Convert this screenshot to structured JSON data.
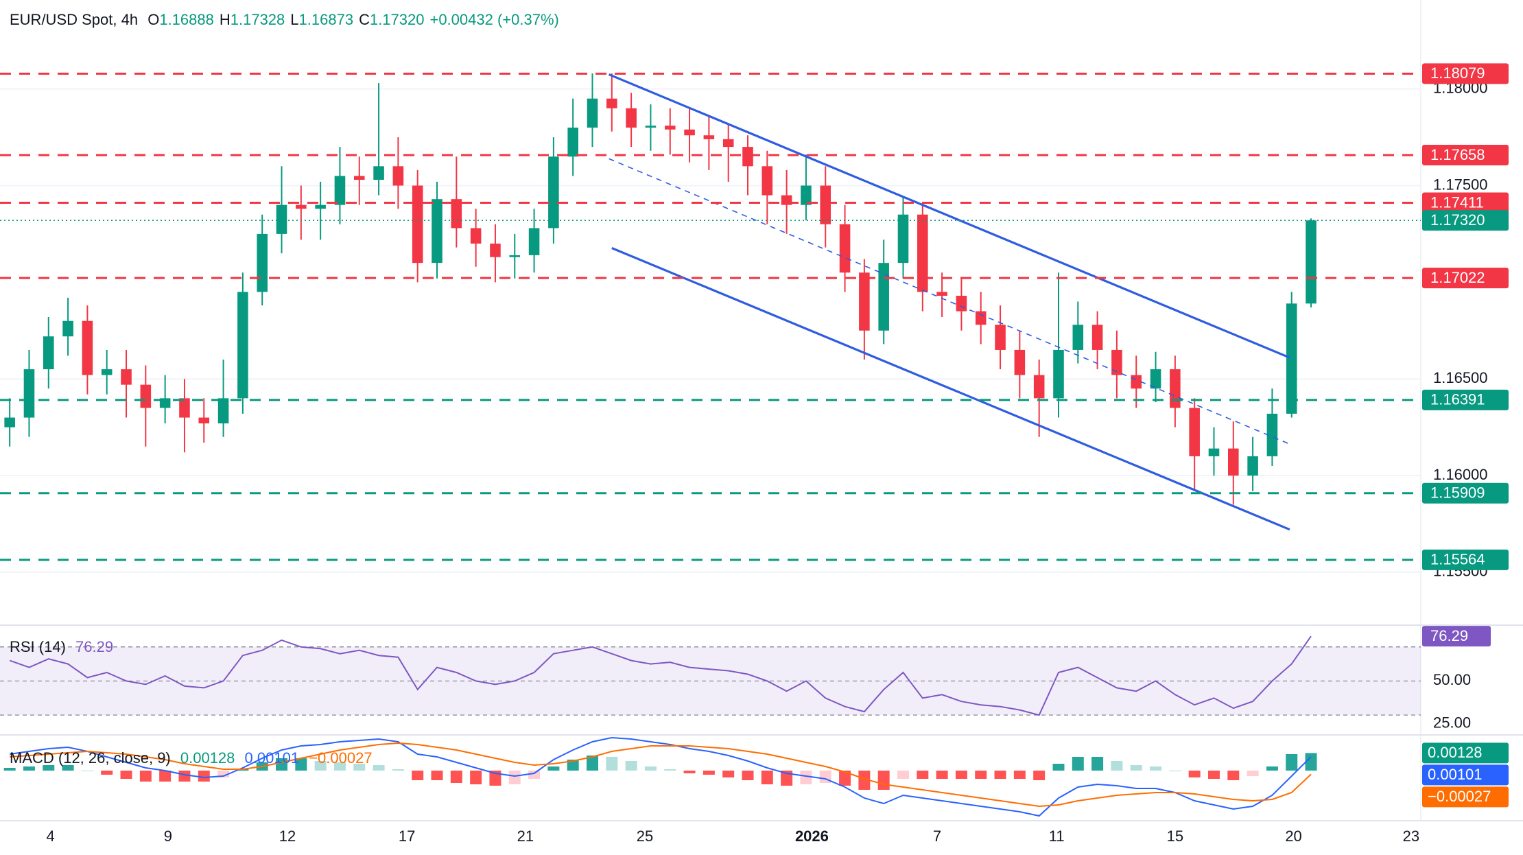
{
  "chart_data": [
    {
      "type": "candlestick",
      "title": "EUR/USD Spot, 4h",
      "legend": [
        {
          "key": "O",
          "value": "1.16888"
        },
        {
          "key": "H",
          "value": "1.17328"
        },
        {
          "key": "L",
          "value": "1.16873"
        },
        {
          "key": "C",
          "value": "1.17320"
        }
      ],
      "change": "+0.00432 (+0.37%)",
      "open": [
        1.1625,
        1.163,
        1.1655,
        1.1672,
        1.168,
        1.1652,
        1.1655,
        1.1647,
        1.1635,
        1.164,
        1.163,
        1.1627,
        1.164,
        1.1695,
        1.1725,
        1.174,
        1.1738,
        1.174,
        1.1755,
        1.1753,
        1.176,
        1.175,
        1.171,
        1.1743,
        1.1728,
        1.172,
        1.1713,
        1.1714,
        1.1728,
        1.1765,
        1.178,
        1.1795,
        1.179,
        1.178,
        1.1781,
        1.1779,
        1.1776,
        1.1774,
        1.177,
        1.176,
        1.1745,
        1.174,
        1.175,
        1.173,
        1.1705,
        1.1675,
        1.171,
        1.1735,
        1.1695,
        1.1693,
        1.1685,
        1.1678,
        1.1665,
        1.1652,
        1.164,
        1.1665,
        1.1678,
        1.1665,
        1.1652,
        1.1645,
        1.1655,
        1.1635,
        1.161,
        1.1614,
        1.16,
        1.161,
        1.1632,
        1.1689
      ],
      "high": [
        1.164,
        1.1665,
        1.1682,
        1.1692,
        1.1688,
        1.1665,
        1.1665,
        1.1657,
        1.1652,
        1.165,
        1.164,
        1.166,
        1.1705,
        1.1735,
        1.176,
        1.175,
        1.1752,
        1.177,
        1.1765,
        1.1803,
        1.1775,
        1.1758,
        1.1752,
        1.1765,
        1.1738,
        1.173,
        1.1725,
        1.1738,
        1.1775,
        1.1795,
        1.1808,
        1.1808,
        1.1798,
        1.1792,
        1.179,
        1.179,
        1.1786,
        1.1782,
        1.1776,
        1.1768,
        1.1758,
        1.1766,
        1.176,
        1.174,
        1.1712,
        1.1722,
        1.1744,
        1.174,
        1.1705,
        1.1702,
        1.1695,
        1.1688,
        1.1675,
        1.166,
        1.1705,
        1.169,
        1.1685,
        1.1675,
        1.1662,
        1.1664,
        1.1662,
        1.164,
        1.1625,
        1.1628,
        1.162,
        1.1645,
        1.1695,
        1.1733
      ],
      "low": [
        1.1615,
        1.162,
        1.1645,
        1.1662,
        1.1642,
        1.1642,
        1.163,
        1.1615,
        1.1627,
        1.1612,
        1.1617,
        1.162,
        1.1632,
        1.1688,
        1.1715,
        1.1722,
        1.1722,
        1.173,
        1.174,
        1.1745,
        1.1738,
        1.17,
        1.1702,
        1.1718,
        1.1708,
        1.17,
        1.1702,
        1.1705,
        1.172,
        1.1755,
        1.177,
        1.1778,
        1.177,
        1.1768,
        1.1766,
        1.1762,
        1.1758,
        1.1752,
        1.1745,
        1.173,
        1.1725,
        1.1732,
        1.1718,
        1.1695,
        1.166,
        1.1668,
        1.1702,
        1.1685,
        1.1682,
        1.1675,
        1.1668,
        1.1655,
        1.164,
        1.162,
        1.163,
        1.1658,
        1.1655,
        1.164,
        1.1635,
        1.1638,
        1.1625,
        1.1592,
        1.16,
        1.1585,
        1.1592,
        1.1605,
        1.163,
        1.1687
      ],
      "close": [
        1.163,
        1.1655,
        1.1672,
        1.168,
        1.1652,
        1.1655,
        1.1647,
        1.1635,
        1.164,
        1.163,
        1.1627,
        1.164,
        1.1695,
        1.1725,
        1.174,
        1.1738,
        1.174,
        1.1755,
        1.1753,
        1.176,
        1.175,
        1.171,
        1.1743,
        1.1728,
        1.172,
        1.1713,
        1.1714,
        1.1728,
        1.1765,
        1.178,
        1.1795,
        1.179,
        1.178,
        1.1781,
        1.1779,
        1.1776,
        1.1774,
        1.177,
        1.176,
        1.1745,
        1.174,
        1.175,
        1.173,
        1.1705,
        1.1675,
        1.171,
        1.1735,
        1.1695,
        1.1693,
        1.1685,
        1.1678,
        1.1665,
        1.1652,
        1.164,
        1.1665,
        1.1678,
        1.1665,
        1.1652,
        1.1645,
        1.1655,
        1.1635,
        1.161,
        1.1614,
        1.16,
        1.161,
        1.1632,
        1.1689,
        1.1732
      ],
      "up_color": "#089981",
      "down_color": "#f23645",
      "xlim": [
        -0.5,
        72.65
      ],
      "xticks": [
        {
          "value": 2.1,
          "label": "4"
        },
        {
          "value": 8.15,
          "label": "9"
        },
        {
          "value": 14.3,
          "label": "12"
        },
        {
          "value": 20.45,
          "label": "17"
        },
        {
          "value": 26.55,
          "label": "21"
        },
        {
          "value": 32.7,
          "label": "25"
        },
        {
          "value": 41.3,
          "label": "2026",
          "bold": true
        },
        {
          "value": 47.75,
          "label": "7"
        },
        {
          "value": 53.9,
          "label": "11"
        },
        {
          "value": 60,
          "label": "15"
        },
        {
          "value": 66.1,
          "label": "20"
        },
        {
          "value": 72.15,
          "label": "23"
        }
      ],
      "ylim": [
        1.1523,
        1.1846
      ],
      "yticks": [
        {
          "value": 1.155,
          "label": "1.15500"
        },
        {
          "value": 1.16,
          "label": "1.16000"
        },
        {
          "value": 1.165,
          "label": "1.16500"
        },
        {
          "value": 1.175,
          "label": "1.17500"
        },
        {
          "value": 1.18,
          "label": "1.18000"
        }
      ],
      "grid": true,
      "levels": [
        {
          "value": 1.18079,
          "color": "#f23645",
          "style": "dashed"
        },
        {
          "value": 1.17658,
          "color": "#f23645",
          "style": "dashed"
        },
        {
          "value": 1.17411,
          "color": "#f23645",
          "style": "dashed"
        },
        {
          "value": 1.1732,
          "label": "1.17320",
          "color": "#089981",
          "style": "dotted"
        },
        {
          "value": 1.17022,
          "color": "#f23645",
          "style": "dashed"
        },
        {
          "value": 1.16391,
          "color": "#089981",
          "style": "dashed"
        },
        {
          "value": 1.15909,
          "color": "#089981",
          "style": "dashed"
        },
        {
          "value": 1.15564,
          "color": "#089981",
          "style": "dashed"
        }
      ],
      "trendlines": [
        {
          "x": [
            30.85,
            65.9
          ],
          "y": [
            1.18075,
            1.1661
          ],
          "color": "#2f5ce0",
          "dashed": false
        },
        {
          "x": [
            30.85,
            65.9
          ],
          "y": [
            1.17639,
            1.16163
          ],
          "color": "#2f5ce0",
          "dashed": true
        },
        {
          "x": [
            31,
            65.9
          ],
          "y": [
            1.17177,
            1.15721
          ],
          "color": "#2f5ce0",
          "dashed": false
        }
      ]
    },
    {
      "type": "line",
      "title": "RSI (14)",
      "values": [
        62,
        58,
        63,
        60,
        52,
        55,
        50,
        48,
        53,
        47,
        46,
        50,
        65,
        68,
        74,
        70,
        69,
        66,
        68,
        65,
        64,
        45,
        58,
        55,
        50,
        48,
        50,
        55,
        66,
        68,
        70,
        66,
        62,
        60,
        61,
        58,
        57,
        56,
        54,
        50,
        44,
        50,
        40,
        35,
        32,
        45,
        55,
        40,
        42,
        38,
        36,
        35,
        33,
        30,
        55,
        58,
        52,
        46,
        44,
        50,
        42,
        36,
        40,
        34,
        38,
        50,
        60,
        76.29
      ],
      "color": "#7e57c2",
      "ylim": [
        18.75,
        82.4
      ],
      "yticks": [
        {
          "value": 25,
          "label": "25.00"
        },
        {
          "value": 50,
          "label": "50.00"
        }
      ],
      "levels": [
        70,
        50,
        30
      ]
    },
    {
      "type": "macd",
      "title": "MACD (12, 26, close, 9)",
      "histogram": {
        "values": [
          0.0002,
          0.0003,
          0.0004,
          0.0004,
          0,
          -0.0003,
          -0.0006,
          -0.0008,
          -0.0008,
          -0.0008,
          -0.0008,
          -0.0005,
          0.0001,
          0.0006,
          0.0009,
          0.0009,
          0.0007,
          0.0006,
          0.0005,
          0.0004,
          0.0001,
          -0.0007,
          -0.0007,
          -0.0009,
          -0.001,
          -0.0011,
          -0.001,
          -0.0006,
          0.0003,
          0.0008,
          0.0011,
          0.001,
          0.0007,
          0.0003,
          0.0001,
          -0.0002,
          -0.0003,
          -0.0005,
          -0.0007,
          -0.001,
          -0.0011,
          -0.001,
          -0.0009,
          -0.0011,
          -0.0014,
          -0.0014,
          -0.0006,
          -0.0006,
          -0.0006,
          -0.0006,
          -0.0006,
          -0.0006,
          -0.0006,
          -0.0007,
          0.0005,
          0.001,
          0.001,
          0.0007,
          0.0004,
          0.0003,
          0,
          -0.0005,
          -0.0006,
          -0.0007,
          -0.0004,
          0.0003,
          0.0012,
          0.00128
        ],
        "colors": {
          "up": "#26a69a",
          "up_weak": "#b2dfdb",
          "down": "#ff5252",
          "down_weak": "#ffcdd2"
        },
        "label_color": "#089981"
      },
      "series": [
        {
          "color": "#2962ff",
          "values": [
            0.0012,
            0.0014,
            0.0016,
            0.0017,
            0.0014,
            0.001,
            0.0006,
            0.0002,
            0,
            -0.0003,
            -0.0005,
            -0.0004,
            0.0002,
            0.0009,
            0.0015,
            0.0018,
            0.0019,
            0.0021,
            0.0022,
            0.0023,
            0.0021,
            0.0012,
            0.001,
            0.0006,
            0.0002,
            -0.0002,
            -0.0004,
            -0.0002,
            0.0008,
            0.0015,
            0.0021,
            0.0024,
            0.0023,
            0.0021,
            0.0019,
            0.0016,
            0.0014,
            0.0011,
            0.0007,
            0.0002,
            -0.0002,
            -0.0004,
            -0.0006,
            -0.0012,
            -0.002,
            -0.0024,
            -0.0018,
            -0.002,
            -0.0022,
            -0.0024,
            -0.0026,
            -0.0028,
            -0.003,
            -0.0033,
            -0.002,
            -0.0012,
            -0.001,
            -0.0011,
            -0.0013,
            -0.0013,
            -0.0016,
            -0.0022,
            -0.0025,
            -0.0028,
            -0.0026,
            -0.0018,
            -0.0004,
            0.00101
          ]
        },
        {
          "color": "#ff6d00",
          "values": [
            0.001,
            0.0011,
            0.0012,
            0.0013,
            0.0014,
            0.0013,
            0.0012,
            0.001,
            0.0008,
            0.0005,
            0.0003,
            0.0001,
            0.0001,
            0.0003,
            0.0006,
            0.0009,
            0.0012,
            0.0015,
            0.0017,
            0.0019,
            0.002,
            0.0019,
            0.0017,
            0.0015,
            0.0012,
            0.0009,
            0.0006,
            0.0004,
            0.0005,
            0.0007,
            0.001,
            0.0014,
            0.0016,
            0.0018,
            0.0018,
            0.0018,
            0.0017,
            0.0016,
            0.0014,
            0.0012,
            0.0009,
            0.0006,
            0.0003,
            -0.0001,
            -0.0006,
            -0.001,
            -0.0012,
            -0.0014,
            -0.0016,
            -0.0018,
            -0.002,
            -0.0022,
            -0.0024,
            -0.0026,
            -0.0025,
            -0.0022,
            -0.002,
            -0.0018,
            -0.0017,
            -0.0016,
            -0.0016,
            -0.0017,
            -0.0019,
            -0.0021,
            -0.0022,
            -0.0021,
            -0.0016,
            -0.00027
          ],
          "last_label": "−0.00027"
        }
      ],
      "ylim": [
        -0.0036,
        0.0025
      ]
    }
  ]
}
